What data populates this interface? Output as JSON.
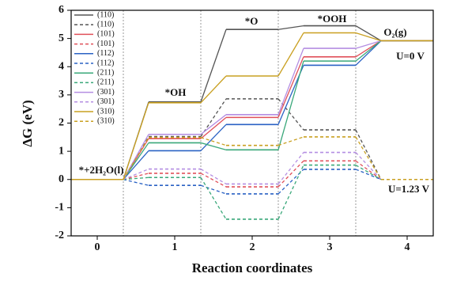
{
  "chart_data": {
    "type": "line",
    "x_label": "Reaction coordinates",
    "y_label": "ΔG (eV)",
    "categories": [
      "0",
      "1",
      "2",
      "3",
      "4"
    ],
    "ylim": [
      -2,
      6
    ],
    "yticks": [
      -2,
      -1,
      0,
      1,
      2,
      3,
      4,
      5,
      6
    ],
    "legend": "upper left",
    "series": [
      {
        "name": "(110)",
        "color": "#555555",
        "dashed": false,
        "values": [
          0,
          2.75,
          5.32,
          5.45,
          4.92
        ]
      },
      {
        "name": "(110)",
        "color": "#555555",
        "dashed": true,
        "values": [
          0,
          1.52,
          2.86,
          1.76,
          0
        ]
      },
      {
        "name": "(101)",
        "color": "#e0505a",
        "dashed": false,
        "values": [
          0,
          1.45,
          2.2,
          4.35,
          4.92
        ]
      },
      {
        "name": "(101)",
        "color": "#e0505a",
        "dashed": true,
        "values": [
          0,
          0.22,
          -0.26,
          0.66,
          0
        ]
      },
      {
        "name": "(112)",
        "color": "#2a62c4",
        "dashed": false,
        "values": [
          0,
          1.02,
          1.95,
          4.05,
          4.92
        ]
      },
      {
        "name": "(112)",
        "color": "#2a62c4",
        "dashed": true,
        "values": [
          0,
          -0.21,
          -0.51,
          0.36,
          0
        ]
      },
      {
        "name": "(211)",
        "color": "#3aa87a",
        "dashed": false,
        "values": [
          0,
          1.3,
          1.05,
          4.2,
          4.92
        ]
      },
      {
        "name": "(211)",
        "color": "#3aa87a",
        "dashed": true,
        "values": [
          0,
          0.07,
          -1.41,
          0.51,
          0
        ]
      },
      {
        "name": "(301)",
        "color": "#b48ee2",
        "dashed": false,
        "values": [
          0,
          1.6,
          2.3,
          4.65,
          4.92
        ]
      },
      {
        "name": "(301)",
        "color": "#b48ee2",
        "dashed": true,
        "values": [
          0,
          0.37,
          -0.16,
          0.96,
          0
        ]
      },
      {
        "name": "(310)",
        "color": "#c9a021",
        "dashed": false,
        "values": [
          0,
          2.72,
          3.67,
          5.2,
          4.92
        ]
      },
      {
        "name": "(310)",
        "color": "#c9a021",
        "dashed": true,
        "values": [
          0,
          1.49,
          1.21,
          1.51,
          0
        ]
      }
    ],
    "annotations": [
      "*OH",
      "*O",
      "*OOH",
      "O₂(g)",
      "U=0 V",
      "U=1.23 V",
      "*+2H₂O(l)"
    ]
  }
}
